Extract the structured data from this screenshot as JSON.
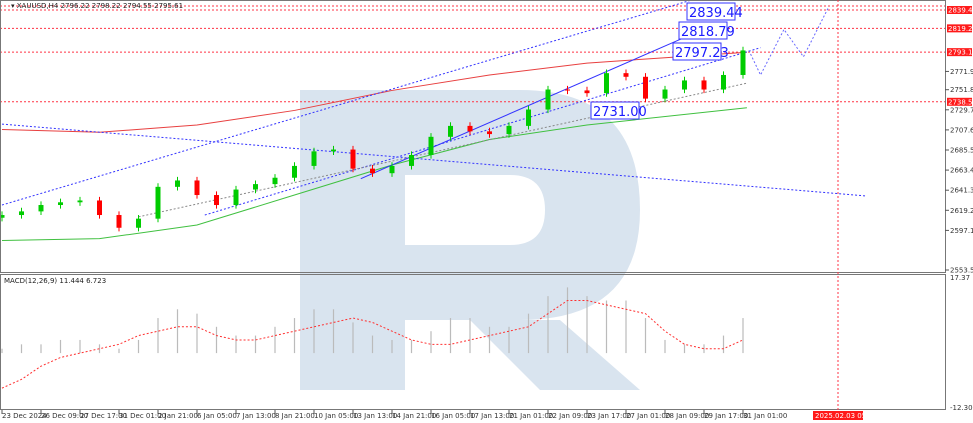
{
  "header": {
    "symbol": "XAUUSD,H4",
    "ohlc": "2796.22 2798.22 2794.55 2795.61"
  },
  "macd_title": "MACD(12,26,9) 11.444 6.723",
  "colors": {
    "bull": "#00cc00",
    "bear": "#ff0000",
    "ma_fast": "#e84040",
    "ma_slow": "#40c040",
    "trend": "#3333ff",
    "level_line": "#ff3344",
    "watermark": "#d6e2ee"
  },
  "chart_data": [
    {
      "type": "candlestick",
      "title": "XAUUSD,H4",
      "ylim": [
        2553.55,
        2839.44
      ],
      "y_ticks": [
        "2771.90",
        "2751.80",
        "2729.70",
        "2707.60",
        "2685.50",
        "2663.40",
        "2641.30",
        "2619.20",
        "2597.10",
        "2553.55"
      ],
      "price_labels": [
        "2839.44",
        "2819.25",
        "2793.11",
        "2738.50"
      ],
      "x_ticks": [
        "23 Dec 2024",
        "26 Dec 09:00",
        "27 Dec 17:00",
        "31 Dec 01:00",
        "2 Jan 21:00",
        "6 Jan 05:00",
        "7 Jan 13:00",
        "8 Jan 21:00",
        "10 Jan 05:00",
        "13 Jan 13:00",
        "14 Jan 21:00",
        "16 Jan 05:00",
        "17 Jan 13:00",
        "21 Jan 01:00",
        "22 Jan 09:00",
        "23 Jan 17:00",
        "27 Jan 01:00",
        "28 Jan 09:00",
        "29 Jan 17:00",
        "31 Jan 01:00"
      ],
      "forecast_time": "2025.02.03 05:00",
      "closes": [
        2614,
        2618,
        2625,
        2628,
        2630,
        2614,
        2600,
        2610,
        2645,
        2652,
        2636,
        2625,
        2642,
        2648,
        2655,
        2668,
        2684,
        2686,
        2665,
        2660,
        2668,
        2680,
        2700,
        2712,
        2706,
        2703,
        2712,
        2730,
        2752,
        2751,
        2748,
        2770,
        2766,
        2742,
        2752,
        2762,
        2752,
        2768,
        2795
      ],
      "ma_red": [
        [
          0,
          2708
        ],
        [
          5,
          2705
        ],
        [
          10,
          2713
        ],
        [
          15,
          2729
        ],
        [
          20,
          2751
        ],
        [
          25,
          2768
        ],
        [
          30,
          2781
        ],
        [
          34,
          2787
        ],
        [
          38.2,
          2793
        ]
      ],
      "ma_green": [
        [
          0,
          2586
        ],
        [
          5,
          2588
        ],
        [
          10,
          2603
        ],
        [
          15,
          2636
        ],
        [
          20,
          2669
        ],
        [
          25,
          2697
        ],
        [
          30,
          2713
        ],
        [
          38.2,
          2732
        ]
      ],
      "trendlines": [
        {
          "style": "dotted",
          "from": [
            0,
            2625
          ],
          "to": [
            35.3,
            2850
          ]
        },
        {
          "style": "solid",
          "from": [
            18.4,
            2654
          ],
          "to": [
            35.3,
            2812
          ]
        },
        {
          "style": "dotted",
          "from": [
            10.4,
            2614
          ],
          "to": [
            38.9,
            2798
          ]
        },
        {
          "style": "dotted",
          "from": [
            0,
            2714
          ],
          "to": [
            44.3,
            2635
          ]
        },
        {
          "style": "dotted-gray",
          "from": [
            7,
            2612
          ],
          "to": [
            38.2,
            2759
          ]
        }
      ],
      "forecast_path": [
        [
          38.3,
          2795
        ],
        [
          38.9,
          2768
        ],
        [
          40.1,
          2818
        ],
        [
          41.1,
          2788
        ],
        [
          42.4,
          2843
        ]
      ],
      "annotations": [
        "2839.44",
        "2818.79",
        "2797.23",
        "2731.00"
      ]
    },
    {
      "type": "bar",
      "title": "MACD(12,26,9) 11.444 6.723",
      "ylim": [
        -12.308,
        17.37
      ],
      "y_ticks": [
        "17.37",
        "-12.308"
      ],
      "histogram": [
        1,
        2,
        2,
        3,
        3,
        2,
        1,
        3,
        8,
        10,
        9,
        6,
        4,
        4,
        6,
        8,
        10,
        10,
        7,
        4,
        3,
        3,
        5,
        8,
        8,
        6,
        6,
        9,
        13,
        15,
        13,
        12,
        12,
        8,
        3,
        2,
        2,
        4,
        8
      ],
      "signal": [
        -8,
        -6,
        -3,
        -1,
        0,
        1,
        2,
        4,
        5,
        6,
        6,
        4,
        3,
        3,
        4,
        5,
        6,
        7,
        8,
        7,
        5,
        3,
        2,
        2,
        3,
        4,
        5,
        6,
        9,
        12,
        12,
        11,
        10,
        9,
        5,
        2,
        1,
        1,
        3
      ]
    }
  ]
}
